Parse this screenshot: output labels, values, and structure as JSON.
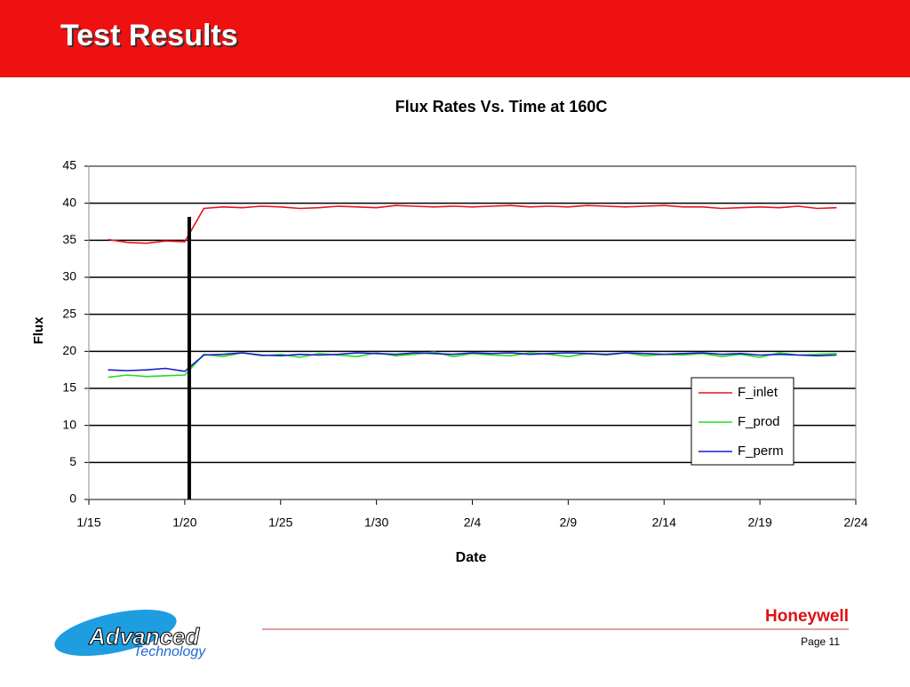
{
  "header": {
    "title": "Test Results"
  },
  "chart_data": {
    "type": "line",
    "title": "Flux Rates Vs. Time at 160C",
    "x_label": "Date",
    "y_label": "Flux",
    "x": [
      "1/16",
      "1/17",
      "1/18",
      "1/19",
      "1/20",
      "1/21",
      "1/22",
      "1/23",
      "1/24",
      "1/25",
      "1/26",
      "1/27",
      "1/28",
      "1/29",
      "1/30",
      "1/31",
      "2/1",
      "2/2",
      "2/3",
      "2/4",
      "2/5",
      "2/6",
      "2/7",
      "2/8",
      "2/9",
      "2/10",
      "2/11",
      "2/12",
      "2/13",
      "2/14",
      "2/15",
      "2/16",
      "2/17",
      "2/18",
      "2/19",
      "2/20",
      "2/21",
      "2/22",
      "2/23"
    ],
    "series": [
      {
        "name": "F_inlet",
        "color": "#e8141c",
        "values": [
          35.1,
          34.7,
          34.6,
          34.9,
          34.8,
          39.3,
          39.5,
          39.4,
          39.6,
          39.5,
          39.3,
          39.4,
          39.6,
          39.5,
          39.4,
          39.7,
          39.6,
          39.5,
          39.6,
          39.5,
          39.6,
          39.7,
          39.5,
          39.6,
          39.5,
          39.7,
          39.6,
          39.5,
          39.6,
          39.7,
          39.5,
          39.5,
          39.3,
          39.4,
          39.5,
          39.4,
          39.6,
          39.3,
          39.4
        ]
      },
      {
        "name": "F_prod",
        "color": "#22dd22",
        "values": [
          16.5,
          16.8,
          16.6,
          16.7,
          16.8,
          19.6,
          19.3,
          19.8,
          19.4,
          19.6,
          19.2,
          19.7,
          19.5,
          19.3,
          19.8,
          19.4,
          19.6,
          19.9,
          19.3,
          19.7,
          19.5,
          19.4,
          19.8,
          19.6,
          19.3,
          19.7,
          19.5,
          19.8,
          19.4,
          19.6,
          19.5,
          19.7,
          19.3,
          19.6,
          19.2,
          19.8,
          19.5,
          19.6,
          19.7
        ]
      },
      {
        "name": "F_perm",
        "color": "#1a1acc",
        "values": [
          17.5,
          17.4,
          17.5,
          17.7,
          17.3,
          19.5,
          19.6,
          19.8,
          19.5,
          19.4,
          19.6,
          19.5,
          19.6,
          19.8,
          19.7,
          19.6,
          19.8,
          19.7,
          19.6,
          19.8,
          19.7,
          19.8,
          19.6,
          19.7,
          19.8,
          19.7,
          19.6,
          19.8,
          19.7,
          19.6,
          19.7,
          19.8,
          19.6,
          19.7,
          19.5,
          19.6,
          19.5,
          19.4,
          19.5
        ]
      }
    ],
    "xlim": [
      "1/15",
      "2/24"
    ],
    "xticks": [
      "1/15",
      "1/20",
      "1/25",
      "1/30",
      "2/4",
      "2/9",
      "2/14",
      "2/19",
      "2/24"
    ],
    "ylim": [
      0,
      45
    ],
    "yticks": [
      0,
      5,
      10,
      15,
      20,
      25,
      30,
      35,
      40,
      45
    ],
    "grid": true
  },
  "footer": {
    "logo_line1": "Advanced",
    "logo_line2": "Technology",
    "brand": "Honeywell",
    "page": "Page 11"
  }
}
